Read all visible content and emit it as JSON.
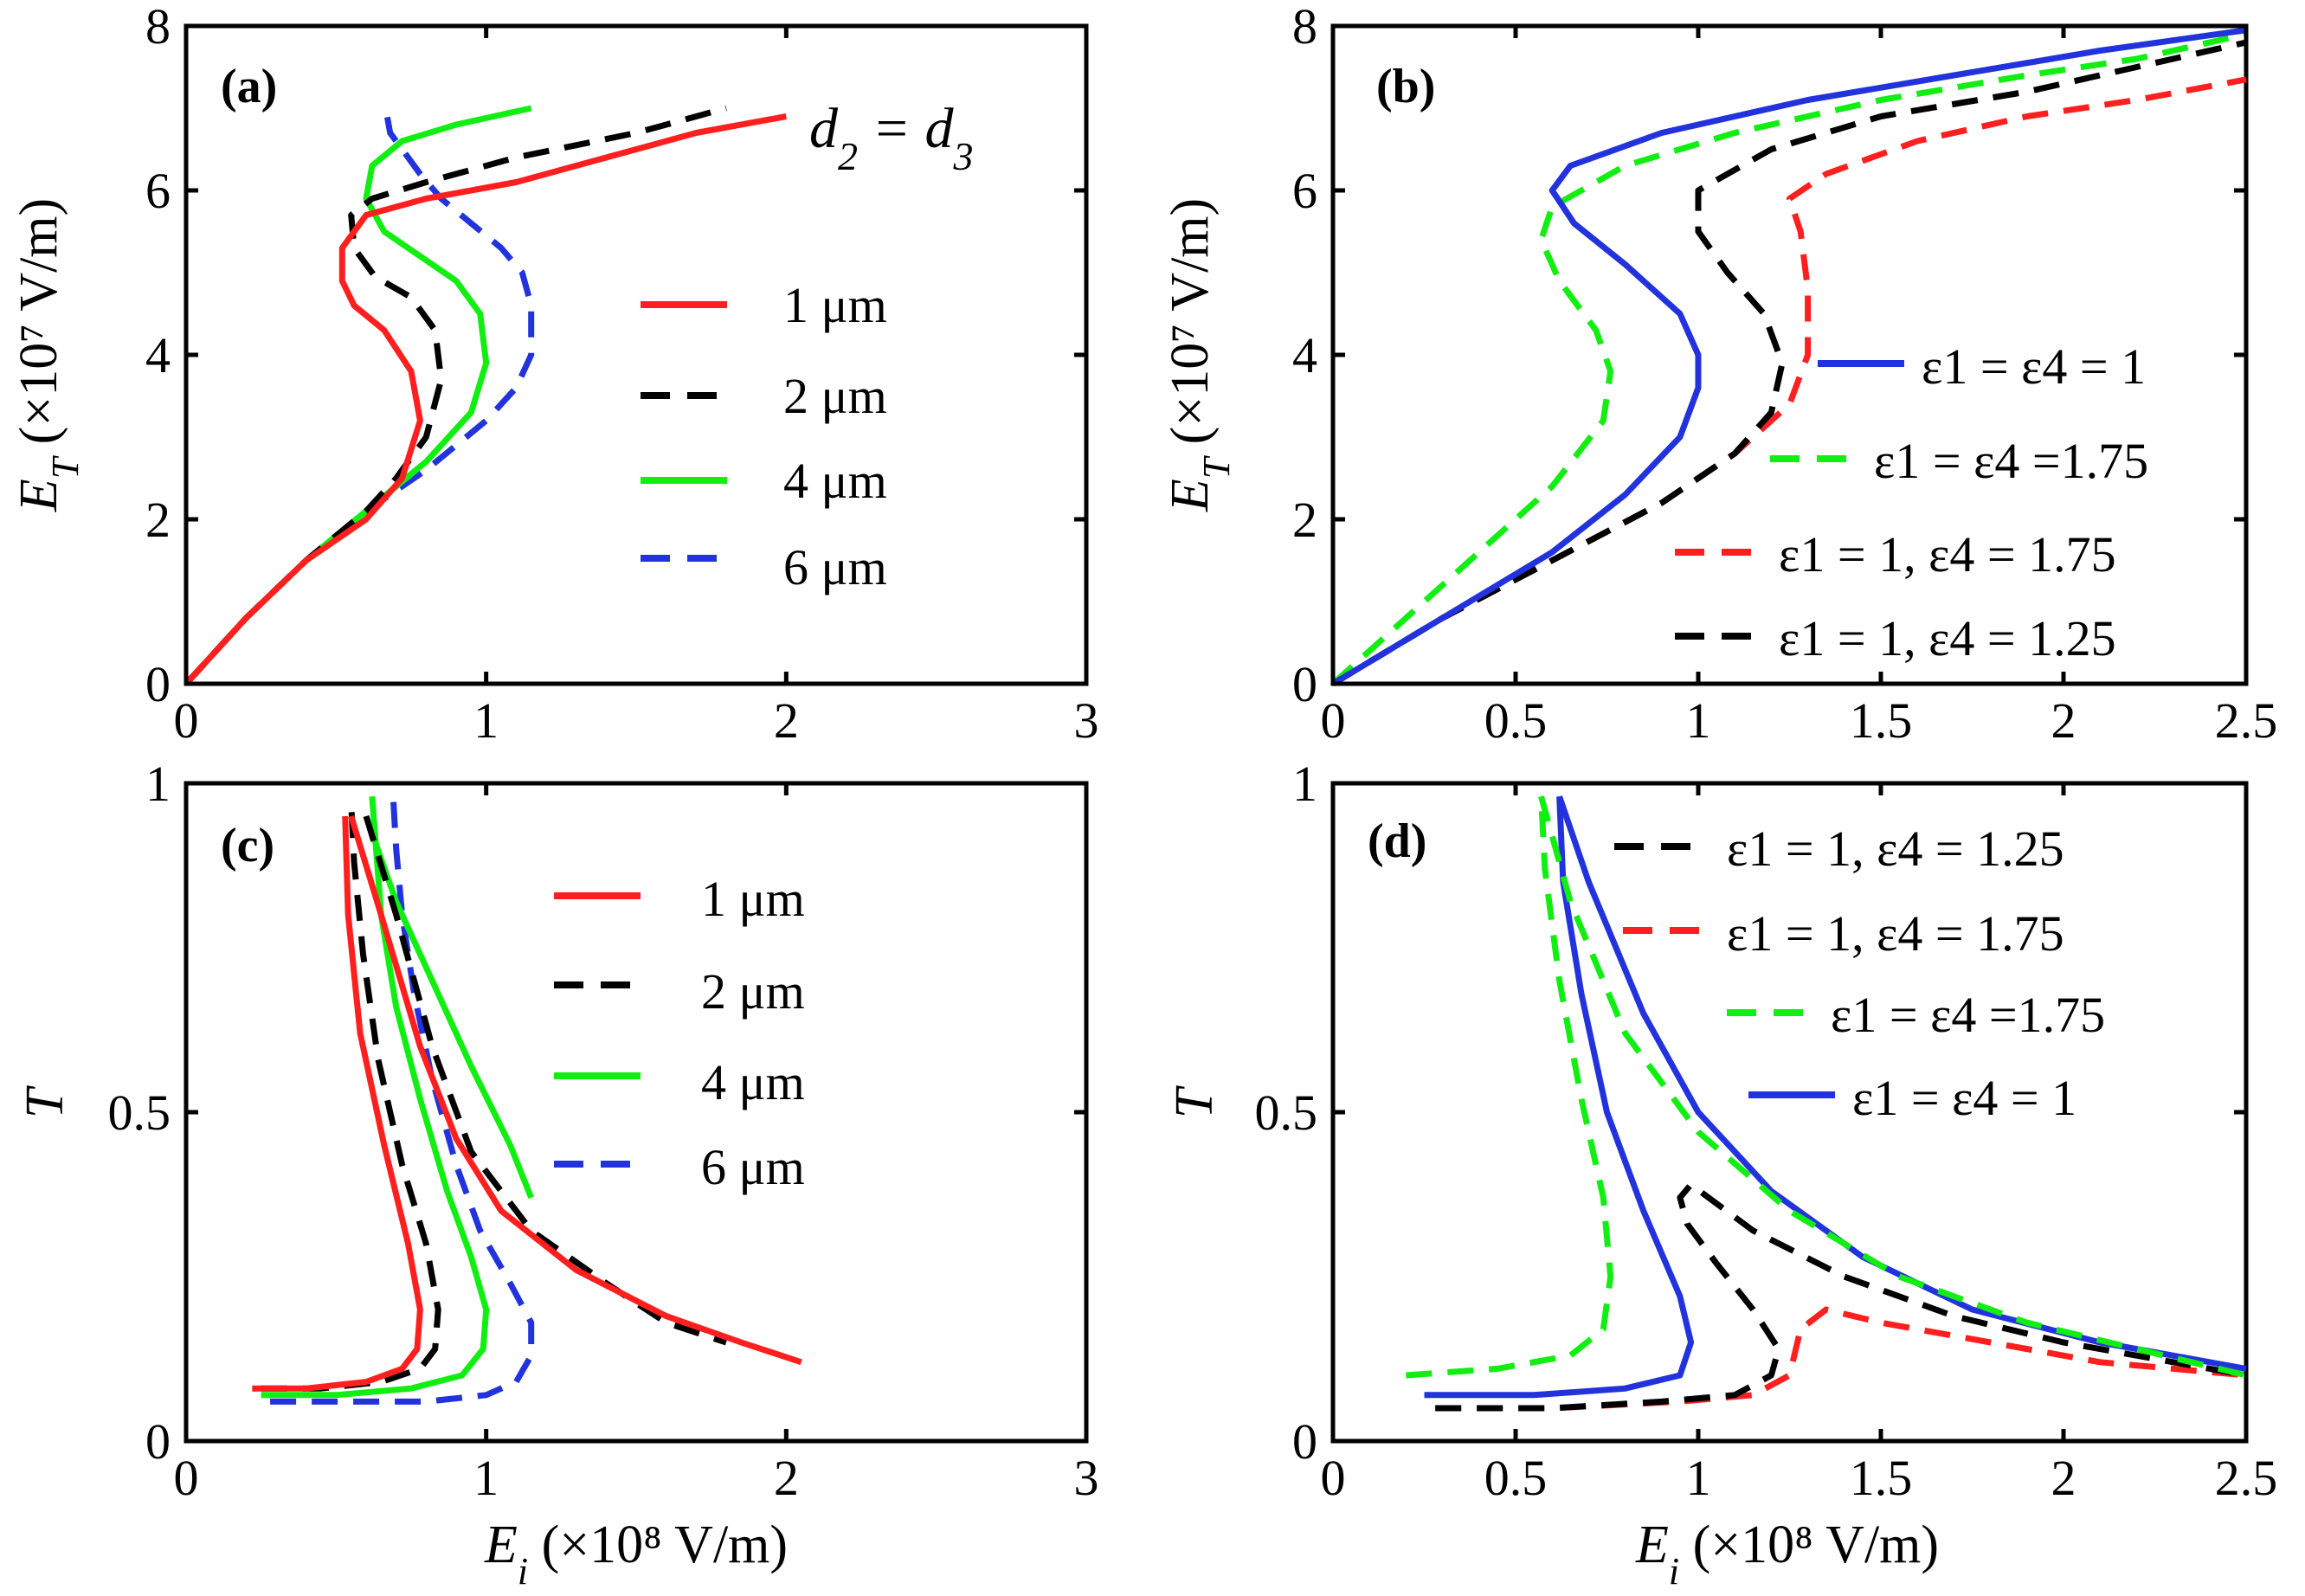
{
  "colors": {
    "red": "#ff1f1f",
    "black": "#000000",
    "green": "#11ee11",
    "blue": "#2233dd"
  },
  "axes": {
    "et_label_main": "E",
    "et_label_sub": "T",
    "et_label_unit": " (×10⁷ V/m)",
    "t_label": "T",
    "ei_label_main": "E",
    "ei_label_sub": "i",
    "ei_label_unit": " (×10⁸ V/m)"
  },
  "chart_data": [
    {
      "id": "a",
      "type": "line",
      "panel_label": "(a)",
      "annotation": {
        "main": "d",
        "s1": "2",
        "eq": " = d",
        "s2": "3"
      },
      "xlim": [
        0,
        3
      ],
      "ylim": [
        0,
        8
      ],
      "xticks": [
        "0",
        "1",
        "2",
        "3"
      ],
      "yticks": [
        "0",
        "2",
        "4",
        "6",
        "8"
      ],
      "xlabel": "",
      "ylabel": "E_T (×10⁷ V/m)",
      "legend": [
        {
          "label": "1 μm",
          "color": "red",
          "dash": false
        },
        {
          "label": "2 μm",
          "color": "black",
          "dash": true
        },
        {
          "label": "4 μm",
          "color": "green",
          "dash": false
        },
        {
          "label": "6 μm",
          "color": "blue",
          "dash": true
        }
      ],
      "series": [
        {
          "name": "6 μm",
          "color": "blue",
          "dash": true,
          "x": [
            0,
            0.2,
            0.4,
            0.6,
            0.8,
            1.0,
            1.1,
            1.15,
            1.15,
            1.12,
            1.05,
            0.95,
            0.85,
            0.78,
            0.72,
            0.68,
            0.67
          ],
          "y": [
            0,
            0.8,
            1.5,
            2.1,
            2.6,
            3.2,
            3.6,
            4.0,
            4.6,
            5.0,
            5.3,
            5.6,
            5.9,
            6.2,
            6.5,
            6.7,
            6.9
          ]
        },
        {
          "name": "4 μm",
          "color": "green",
          "dash": false,
          "x": [
            0,
            0.2,
            0.4,
            0.6,
            0.8,
            0.95,
            1.0,
            0.98,
            0.9,
            0.78,
            0.66,
            0.6,
            0.62,
            0.72,
            0.9,
            1.15
          ],
          "y": [
            0,
            0.8,
            1.5,
            2.1,
            2.7,
            3.3,
            3.9,
            4.5,
            4.9,
            5.2,
            5.5,
            5.9,
            6.3,
            6.6,
            6.8,
            7.0
          ]
        },
        {
          "name": "2 μm",
          "color": "black",
          "dash": true,
          "x": [
            0,
            0.2,
            0.4,
            0.6,
            0.7,
            0.8,
            0.85,
            0.83,
            0.75,
            0.63,
            0.56,
            0.55,
            0.62,
            0.8,
            1.1,
            1.5,
            1.8
          ],
          "y": [
            0,
            0.8,
            1.5,
            2.1,
            2.5,
            3.0,
            3.7,
            4.3,
            4.7,
            4.95,
            5.3,
            5.7,
            5.9,
            6.1,
            6.4,
            6.7,
            7.0
          ]
        },
        {
          "name": "1 μm",
          "color": "red",
          "dash": false,
          "x": [
            0,
            0.2,
            0.4,
            0.6,
            0.72,
            0.78,
            0.75,
            0.66,
            0.56,
            0.52,
            0.52,
            0.6,
            0.8,
            1.1,
            1.4,
            1.7,
            2.0
          ],
          "y": [
            0,
            0.8,
            1.5,
            2.0,
            2.5,
            3.2,
            3.8,
            4.3,
            4.6,
            4.9,
            5.3,
            5.7,
            5.9,
            6.1,
            6.4,
            6.7,
            6.9
          ]
        }
      ]
    },
    {
      "id": "b",
      "type": "line",
      "panel_label": "(b)",
      "xlim": [
        0,
        2.5
      ],
      "ylim": [
        0,
        8
      ],
      "xticks": [
        "0",
        "0.5",
        "1",
        "1.5",
        "2",
        "2.5"
      ],
      "yticks": [
        "0",
        "2",
        "4",
        "6",
        "8"
      ],
      "xlabel": "",
      "ylabel": "E_T (×10⁷ V/m)",
      "legend": [
        {
          "label": "ε1 = ε4 = 1",
          "color": "blue",
          "dash": false
        },
        {
          "label": "ε1 = ε4 =1.75",
          "color": "green",
          "dash": true
        },
        {
          "label": "ε1 = 1, ε4 = 1.75",
          "color": "red",
          "dash": true
        },
        {
          "label": "ε1 = 1, ε4 = 1.25",
          "color": "black",
          "dash": true
        }
      ],
      "series": [
        {
          "name": "ε1 = 1, ε4 = 1.75",
          "color": "red",
          "dash": true,
          "x": [
            0,
            0.3,
            0.6,
            0.9,
            1.1,
            1.25,
            1.3,
            1.3,
            1.28,
            1.25,
            1.35,
            1.6,
            1.9,
            2.2,
            2.5
          ],
          "y": [
            0,
            0.8,
            1.5,
            2.2,
            2.8,
            3.4,
            4.0,
            4.8,
            5.5,
            5.9,
            6.2,
            6.6,
            6.9,
            7.1,
            7.35
          ]
        },
        {
          "name": "ε1 = 1, ε4 = 1.25",
          "color": "black",
          "dash": true,
          "x": [
            0,
            0.3,
            0.6,
            0.9,
            1.1,
            1.2,
            1.23,
            1.18,
            1.08,
            1.0,
            1.0,
            1.2,
            1.5,
            1.9,
            2.2,
            2.5
          ],
          "y": [
            0,
            0.8,
            1.5,
            2.2,
            2.8,
            3.3,
            3.9,
            4.5,
            5.0,
            5.5,
            6.0,
            6.5,
            6.9,
            7.2,
            7.5,
            7.8
          ]
        },
        {
          "name": "ε1 = ε4 =1.75",
          "color": "green",
          "dash": true,
          "x": [
            0,
            0.2,
            0.4,
            0.6,
            0.74,
            0.76,
            0.72,
            0.62,
            0.57,
            0.6,
            0.8,
            1.1,
            1.5,
            1.9,
            2.2,
            2.5
          ],
          "y": [
            0,
            0.8,
            1.6,
            2.4,
            3.2,
            3.8,
            4.3,
            4.9,
            5.4,
            5.8,
            6.3,
            6.7,
            7.1,
            7.4,
            7.6,
            7.9
          ]
        },
        {
          "name": "ε1 = ε4 = 1",
          "color": "blue",
          "dash": false,
          "x": [
            0,
            0.3,
            0.6,
            0.8,
            0.95,
            1.0,
            1.0,
            0.95,
            0.8,
            0.66,
            0.6,
            0.65,
            0.9,
            1.3,
            1.7,
            2.1,
            2.5
          ],
          "y": [
            0,
            0.8,
            1.6,
            2.3,
            3.0,
            3.6,
            4.0,
            4.5,
            5.1,
            5.6,
            6.0,
            6.3,
            6.7,
            7.1,
            7.4,
            7.7,
            7.95
          ]
        }
      ]
    },
    {
      "id": "c",
      "type": "line",
      "panel_label": "(c)",
      "xlim": [
        0,
        3
      ],
      "ylim": [
        0,
        1
      ],
      "xticks": [
        "0",
        "1",
        "2",
        "3"
      ],
      "yticks": [
        "0",
        "0.5",
        "1"
      ],
      "xlabel": "E_i (×10⁸ V/m)",
      "ylabel": "T",
      "legend": [
        {
          "label": "1 μm",
          "color": "red",
          "dash": false
        },
        {
          "label": "2 μm",
          "color": "black",
          "dash": true
        },
        {
          "label": "4 μm",
          "color": "green",
          "dash": false
        },
        {
          "label": "6 μm",
          "color": "blue",
          "dash": true
        }
      ],
      "series": [
        {
          "name": "6 μm",
          "color": "blue",
          "dash": true,
          "x": [
            0.28,
            0.5,
            0.8,
            1.0,
            1.1,
            1.15,
            1.15,
            1.08,
            0.98,
            0.9,
            0.82,
            0.76,
            0.72,
            0.7,
            0.69
          ],
          "y": [
            0.06,
            0.06,
            0.06,
            0.07,
            0.09,
            0.13,
            0.18,
            0.24,
            0.32,
            0.42,
            0.55,
            0.68,
            0.8,
            0.9,
            0.98
          ]
        },
        {
          "name": "4 μm",
          "color": "green",
          "dash": false,
          "x": [
            0.25,
            0.5,
            0.75,
            0.92,
            0.99,
            1.0,
            0.95,
            0.87,
            0.78,
            0.7,
            0.65,
            0.63,
            0.62
          ],
          "y": [
            0.07,
            0.07,
            0.08,
            0.1,
            0.14,
            0.2,
            0.28,
            0.38,
            0.52,
            0.66,
            0.8,
            0.92,
            0.98
          ]
        },
        {
          "name": "2 μm",
          "color": "black",
          "dash": true,
          "x": [
            0.25,
            0.45,
            0.65,
            0.78,
            0.83,
            0.84,
            0.8,
            0.72,
            0.64,
            0.59,
            0.56,
            0.55
          ],
          "y": [
            0.08,
            0.08,
            0.09,
            0.11,
            0.14,
            0.2,
            0.3,
            0.42,
            0.58,
            0.74,
            0.88,
            0.97
          ]
        },
        {
          "name": "1 μm",
          "color": "red",
          "dash": false,
          "x": [
            0.22,
            0.4,
            0.6,
            0.72,
            0.77,
            0.78,
            0.74,
            0.66,
            0.58,
            0.54,
            0.53
          ],
          "y": [
            0.08,
            0.08,
            0.09,
            0.11,
            0.14,
            0.2,
            0.3,
            0.45,
            0.62,
            0.8,
            0.95
          ]
        },
        {
          "name": "4 μm",
          "color": "green",
          "dash": false,
          "x": [
            0.6,
            0.7,
            0.82,
            0.95,
            1.08,
            1.15
          ],
          "y": [
            0.95,
            0.82,
            0.7,
            0.57,
            0.45,
            0.37
          ]
        },
        {
          "name": "2 μm",
          "color": "black",
          "dash": true,
          "x": [
            0.6,
            0.7,
            0.82,
            0.95,
            1.15,
            1.4,
            1.6,
            1.8
          ],
          "y": [
            0.95,
            0.8,
            0.6,
            0.44,
            0.32,
            0.24,
            0.18,
            0.15
          ]
        },
        {
          "name": "1 μm",
          "color": "red",
          "dash": false,
          "x": [
            0.55,
            0.65,
            0.78,
            0.9,
            1.05,
            1.3,
            1.6,
            1.85,
            2.05
          ],
          "y": [
            0.95,
            0.8,
            0.6,
            0.46,
            0.35,
            0.26,
            0.19,
            0.15,
            0.12
          ]
        }
      ]
    },
    {
      "id": "d",
      "type": "line",
      "panel_label": "(d)",
      "xlim": [
        0,
        2.5
      ],
      "ylim": [
        0,
        1
      ],
      "xticks": [
        "0",
        "0.5",
        "1",
        "1.5",
        "2",
        "2.5"
      ],
      "yticks": [
        "0",
        "0.5",
        "1"
      ],
      "xlabel": "E_i (×10⁸ V/m)",
      "ylabel": "T",
      "legend": [
        {
          "label": "ε1 = 1, ε4 = 1.25",
          "color": "black",
          "dash": true
        },
        {
          "label": "ε1 = 1, ε4 = 1.75",
          "color": "red",
          "dash": true
        },
        {
          "label": "ε1 = ε4 =1.75",
          "color": "green",
          "dash": true
        },
        {
          "label": "ε1 = ε4 = 1",
          "color": "blue",
          "dash": false
        }
      ],
      "series": [
        {
          "name": "ε1 = 1, ε4 = 1.75",
          "color": "red",
          "dash": true,
          "x": [
            0.28,
            0.6,
            0.95,
            1.15,
            1.25,
            1.28,
            1.35,
            1.5,
            1.8,
            2.1,
            2.5
          ],
          "y": [
            0.05,
            0.05,
            0.06,
            0.07,
            0.1,
            0.17,
            0.2,
            0.18,
            0.15,
            0.12,
            0.1
          ]
        },
        {
          "name": "ε1 = 1, ε4 = 1.25",
          "color": "black",
          "dash": true,
          "x": [
            0.28,
            0.6,
            0.9,
            1.1,
            1.2,
            1.22,
            1.15,
            1.05,
            0.97,
            0.95,
            0.98,
            1.15,
            1.4,
            1.7,
            2.0,
            2.3,
            2.5
          ],
          "y": [
            0.05,
            0.05,
            0.06,
            0.07,
            0.1,
            0.14,
            0.2,
            0.27,
            0.33,
            0.37,
            0.39,
            0.32,
            0.25,
            0.19,
            0.15,
            0.12,
            0.1
          ]
        },
        {
          "name": "ε1 = ε4 = 1",
          "color": "blue",
          "dash": false,
          "x": [
            0.25,
            0.55,
            0.8,
            0.95,
            0.98,
            0.95,
            0.85,
            0.75,
            0.68,
            0.63,
            0.62
          ],
          "y": [
            0.07,
            0.07,
            0.08,
            0.1,
            0.15,
            0.22,
            0.35,
            0.5,
            0.68,
            0.85,
            0.98
          ]
        },
        {
          "name": "ε1 = ε4 = 1",
          "color": "blue",
          "dash": false,
          "x": [
            0.62,
            0.7,
            0.85,
            1.0,
            1.2,
            1.45,
            1.75,
            2.1,
            2.5
          ],
          "y": [
            0.98,
            0.85,
            0.65,
            0.5,
            0.38,
            0.28,
            0.2,
            0.15,
            0.11
          ]
        },
        {
          "name": "ε1 = ε4 =1.75",
          "color": "green",
          "dash": true,
          "x": [
            0.2,
            0.45,
            0.65,
            0.74,
            0.76,
            0.74,
            0.68,
            0.62,
            0.58,
            0.57
          ],
          "y": [
            0.1,
            0.11,
            0.13,
            0.17,
            0.25,
            0.37,
            0.52,
            0.7,
            0.87,
            0.98
          ]
        },
        {
          "name": "ε1 = ε4 =1.75",
          "color": "green",
          "dash": true,
          "x": [
            0.57,
            0.65,
            0.8,
            1.0,
            1.25,
            1.55,
            1.9,
            2.2,
            2.5
          ],
          "y": [
            0.98,
            0.82,
            0.62,
            0.47,
            0.35,
            0.25,
            0.18,
            0.14,
            0.1
          ]
        }
      ]
    }
  ]
}
